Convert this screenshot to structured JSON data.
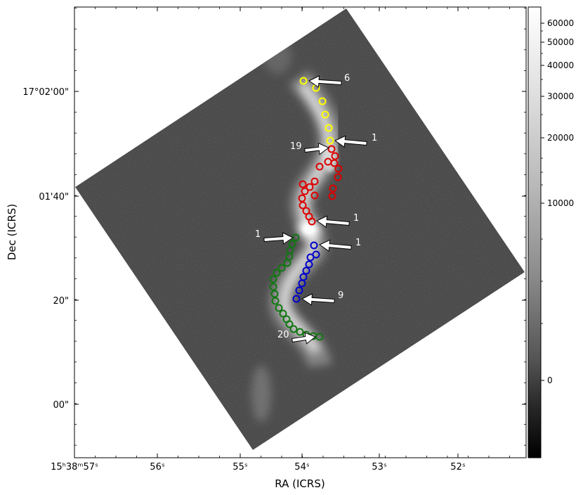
{
  "axes": {
    "xlabel": "RA (ICRS)",
    "ylabel": "Dec (ICRS)",
    "x_ticks": [
      {
        "label": "15ʰ38ᵐ57ˢ",
        "value": "15:38:57"
      },
      {
        "label": "56ˢ",
        "value": "15:38:56"
      },
      {
        "label": "55ˢ",
        "value": "15:38:55"
      },
      {
        "label": "54ˢ",
        "value": "15:38:54"
      },
      {
        "label": "53ˢ",
        "value": "15:38:53"
      },
      {
        "label": "52ˢ",
        "value": "15:38:52"
      }
    ],
    "y_ticks": [
      {
        "label": "17°02'00\"",
        "value": "+17:02:00"
      },
      {
        "label": "01'40\"",
        "value": "+17:01:40"
      },
      {
        "label": "20\"",
        "value": "+17:01:20"
      },
      {
        "label": "00\"",
        "value": "+17:01:00"
      }
    ]
  },
  "colorbar": {
    "colormap": "grayscale",
    "labels": [
      "60000",
      "50000",
      "40000",
      "30000",
      "20000",
      "10000",
      "0"
    ]
  },
  "annotations": [
    {
      "label": "6",
      "color": "#ffff00"
    },
    {
      "label": "1",
      "color": "#ffff00"
    },
    {
      "label": "19",
      "color": "#dd0000"
    },
    {
      "label": "1",
      "color": "#dd0000"
    },
    {
      "label": "1",
      "color": "#0000cc"
    },
    {
      "label": "9",
      "color": "#0000cc"
    },
    {
      "label": "1",
      "color": "#117711"
    },
    {
      "label": "20",
      "color": "#117711"
    }
  ],
  "sequences": [
    {
      "color": "#ffff00",
      "count": 6
    },
    {
      "color": "#dd0000",
      "count": 19
    },
    {
      "color": "#0000cc",
      "count": 9
    },
    {
      "color": "#117711",
      "count": 20
    }
  ]
}
